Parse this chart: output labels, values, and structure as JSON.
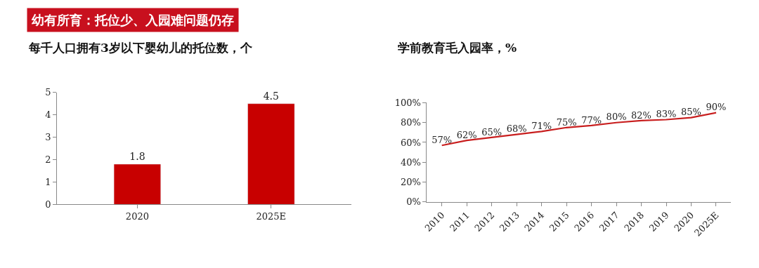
{
  "chart_data": [
    {
      "type": "bar",
      "title": "每千人口拥有3岁以下婴幼儿的托位数，个",
      "annotations": [
        "幼有所育：托位少、入园难问题仍存"
      ],
      "categories": [
        "2020",
        "2025E"
      ],
      "values": [
        1.8,
        4.5
      ],
      "color": "#c80000",
      "ylim": [
        0,
        5
      ],
      "yticks": [
        0,
        1,
        2,
        3,
        4,
        5
      ],
      "data_labels": true
    },
    {
      "type": "line",
      "title": "学前教育毛入园率，%",
      "categories": [
        "2010",
        "2011",
        "2012",
        "2013",
        "2014",
        "2015",
        "2016",
        "2017",
        "2018",
        "2019",
        "2020",
        "2025E"
      ],
      "values": [
        57,
        62,
        65,
        68,
        71,
        75,
        77,
        80,
        82,
        83,
        85,
        90
      ],
      "color": "#c81e1e",
      "value_labels": [
        "57%",
        "62%",
        "65%",
        "68%",
        "71%",
        "75%",
        "77%",
        "80%",
        "82%",
        "83%",
        "85%",
        "90%"
      ],
      "ylim": [
        0,
        100
      ],
      "yticks": [
        {
          "value": 0,
          "label": "0%"
        },
        {
          "value": 20,
          "label": "20%"
        },
        {
          "value": 40,
          "label": "40%"
        },
        {
          "value": 60,
          "label": "60%"
        },
        {
          "value": 80,
          "label": "80%"
        },
        {
          "value": 100,
          "label": "100%"
        }
      ],
      "marker": "none",
      "line_style": "solid"
    }
  ]
}
